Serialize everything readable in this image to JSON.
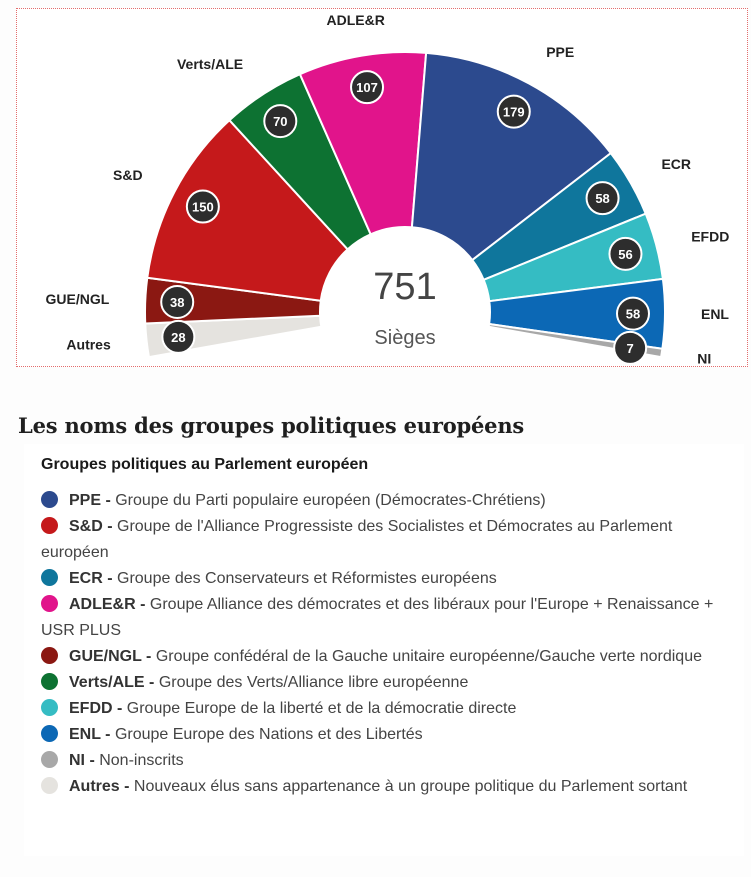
{
  "chart_data": {
    "type": "hemicycle",
    "total": 751,
    "total_label": "Sièges",
    "series": [
      {
        "name": "Autres",
        "value": 28,
        "color": "#e5e3df"
      },
      {
        "name": "GUE/NGL",
        "value": 38,
        "color": "#8b1812"
      },
      {
        "name": "S&D",
        "value": 150,
        "color": "#c5191b"
      },
      {
        "name": "Verts/ALE",
        "value": 70,
        "color": "#0d7232"
      },
      {
        "name": "ADLE&R",
        "value": 107,
        "color": "#e1148b"
      },
      {
        "name": "PPE",
        "value": 179,
        "color": "#2c4a8e"
      },
      {
        "name": "ECR",
        "value": 58,
        "color": "#0f769c"
      },
      {
        "name": "EFDD",
        "value": 56,
        "color": "#35bcc3"
      },
      {
        "name": "ENL",
        "value": 58,
        "color": "#0c68b5"
      },
      {
        "name": "NI",
        "value": 7,
        "color": "#a8a8a8"
      }
    ]
  },
  "section_title": "Les noms des groupes politiques européens",
  "legend": {
    "title": "Groupes politiques au Parlement européen",
    "separator": " - ",
    "items": [
      {
        "abbr": "PPE",
        "description": "Groupe du Parti populaire européen (Démocrates-Chrétiens)",
        "color": "#2c4a8e"
      },
      {
        "abbr": "S&D",
        "description": "Groupe de l'Alliance Progressiste des Socialistes et Démocrates au Parlement européen",
        "color": "#c5191b"
      },
      {
        "abbr": "ECR",
        "description": "Groupe des Conservateurs et Réformistes européens",
        "color": "#0f769c"
      },
      {
        "abbr": "ADLE&R",
        "description": "Groupe Alliance des démocrates et des libéraux pour l'Europe + Renaissance + USR PLUS",
        "color": "#e1148b"
      },
      {
        "abbr": "GUE/NGL",
        "description": "Groupe confédéral de la Gauche unitaire européenne/Gauche verte nordique",
        "color": "#8b1812"
      },
      {
        "abbr": "Verts/ALE",
        "description": "Groupe des Verts/Alliance libre européenne",
        "color": "#0d7232"
      },
      {
        "abbr": "EFDD",
        "description": "Groupe Europe de la liberté et de la démocratie directe",
        "color": "#35bcc3"
      },
      {
        "abbr": "ENL",
        "description": "Groupe Europe des Nations et des Libertés",
        "color": "#0c68b5"
      },
      {
        "abbr": "NI",
        "description": "Non-inscrits",
        "color": "#a8a8a8"
      },
      {
        "abbr": "Autres",
        "description": "Nouveaux élus sans appartenance à un groupe politique du Parlement sortant",
        "color": "#e5e3df"
      }
    ]
  }
}
